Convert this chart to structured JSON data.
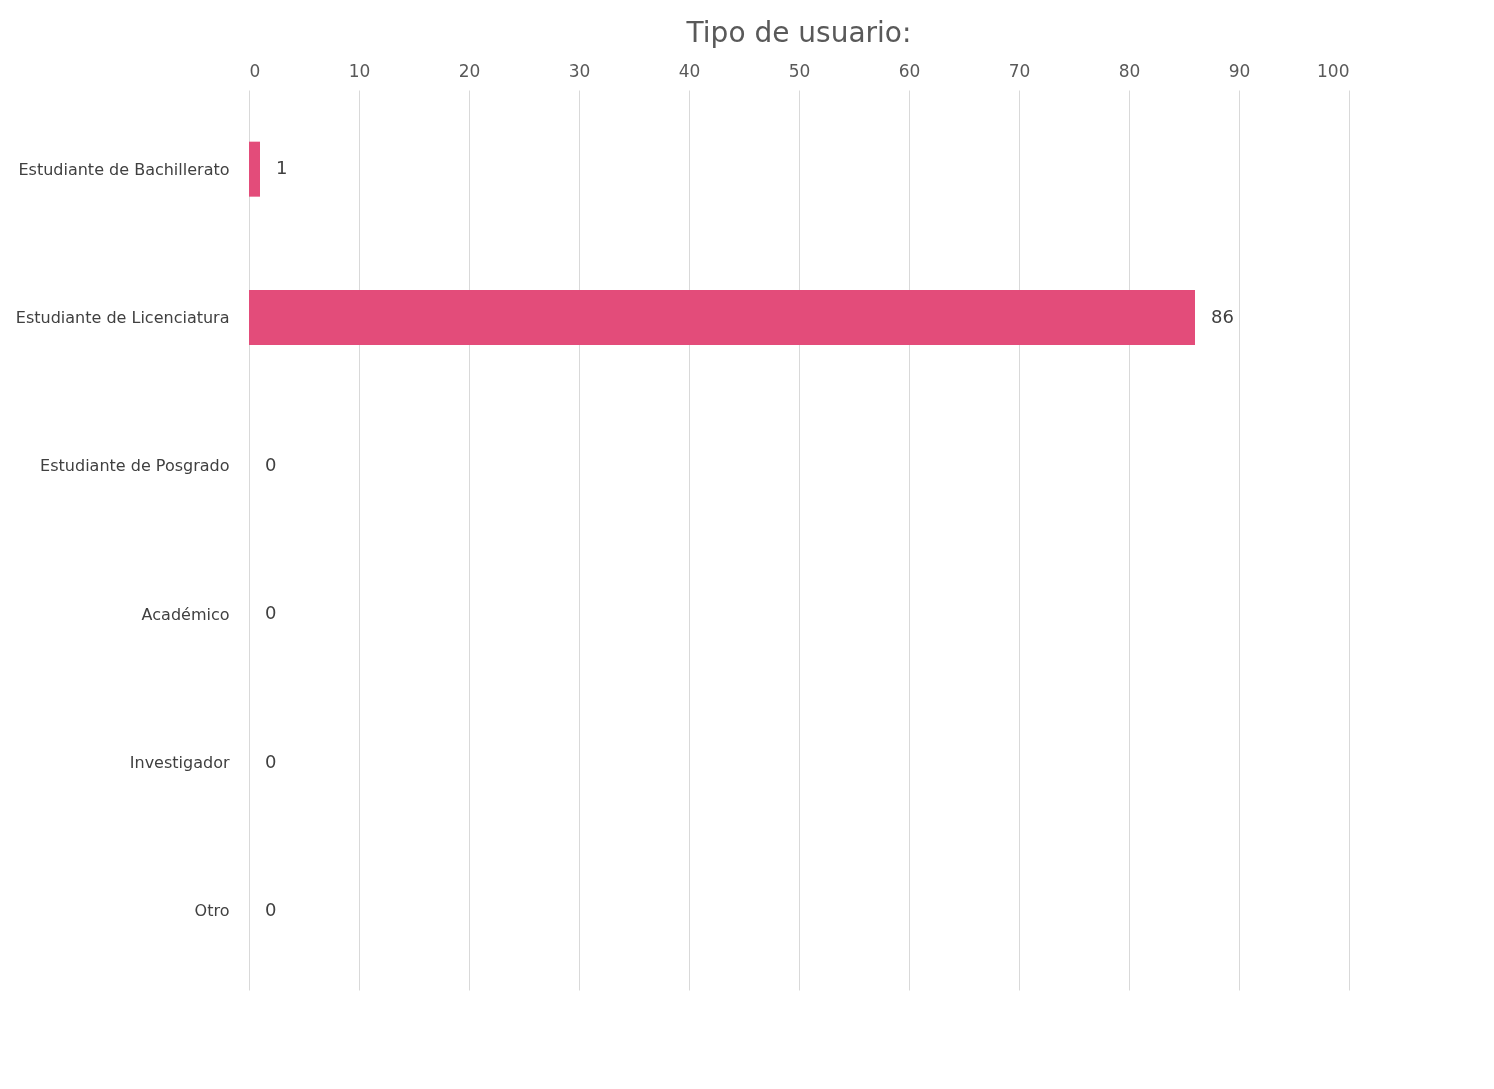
{
  "chart_data": {
    "type": "bar",
    "orientation": "horizontal",
    "title": "Tipo de usuario:",
    "categories": [
      "Estudiante de Bachillerato",
      "Estudiante de Licenciatura",
      "Estudiante de Posgrado",
      "Académico",
      "Investigador",
      "Otro"
    ],
    "values": [
      1,
      86,
      0,
      0,
      0,
      0
    ],
    "color": "#e34c7a",
    "xlim": [
      0,
      100
    ],
    "xticks": [
      0,
      10,
      20,
      30,
      40,
      50,
      60,
      70,
      80,
      90,
      100
    ],
    "grid": "x",
    "data_labels": true
  }
}
